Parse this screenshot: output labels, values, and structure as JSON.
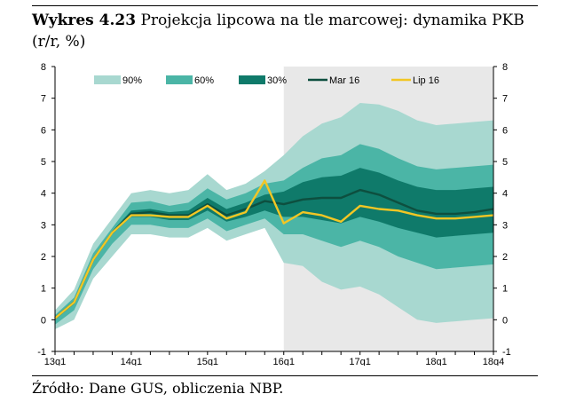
{
  "title": {
    "number": "Wykres 4.23",
    "text": "Projekcja lipcowa na tle marcowej: dynamika PKB (r/r, %)"
  },
  "source": "Źródło: Dane GUS, obliczenia NBP.",
  "colors": {
    "band90": "#a8d8d0",
    "band60": "#4bb5a6",
    "band30": "#0f7a6a",
    "mar16": "#0d4f3f",
    "lip16": "#f2c624",
    "projection_shade": "#e8e8e8"
  },
  "chart_data": {
    "type": "area",
    "title": "",
    "xlabel": "",
    "ylabel": "",
    "ylim": [
      -1,
      8
    ],
    "yticks": [
      -1,
      0,
      1,
      2,
      3,
      4,
      5,
      6,
      7,
      8
    ],
    "x_labels": [
      "13q1",
      "14q1",
      "15q1",
      "16q1",
      "17q1",
      "18q1",
      "18q4"
    ],
    "x_label_positions": [
      "2013Q1",
      "2014Q1",
      "2015Q1",
      "2016Q1",
      "2017Q1",
      "2018Q1",
      "2018Q4"
    ],
    "x": [
      "2013Q1",
      "2013Q2",
      "2013Q3",
      "2013Q4",
      "2014Q1",
      "2014Q2",
      "2014Q3",
      "2014Q4",
      "2015Q1",
      "2015Q2",
      "2015Q3",
      "2015Q4",
      "2016Q1",
      "2016Q2",
      "2016Q3",
      "2016Q4",
      "2017Q1",
      "2017Q2",
      "2017Q3",
      "2017Q4",
      "2018Q1",
      "2018Q2",
      "2018Q3",
      "2018Q4"
    ],
    "projection_shading_start": "2016Q1",
    "legend_position": "top",
    "legend": [
      "90%",
      "60%",
      "30%",
      "Mar 16",
      "Lip 16"
    ],
    "bands": [
      {
        "name": "90%",
        "lower": [
          -0.3,
          0.0,
          1.3,
          2.0,
          2.7,
          2.7,
          2.6,
          2.6,
          2.9,
          2.5,
          2.7,
          2.9,
          1.8,
          1.7,
          1.2,
          0.95,
          1.05,
          0.8,
          0.4,
          0.0,
          -0.1,
          -0.05,
          0.0,
          0.05
        ],
        "upper": [
          0.3,
          0.95,
          2.4,
          3.2,
          4.0,
          4.1,
          4.0,
          4.1,
          4.6,
          4.1,
          4.3,
          4.7,
          5.2,
          5.8,
          6.2,
          6.4,
          6.85,
          6.8,
          6.6,
          6.3,
          6.15,
          6.2,
          6.25,
          6.3
        ]
      },
      {
        "name": "60%",
        "lower": [
          -0.15,
          0.3,
          1.6,
          2.4,
          3.0,
          3.0,
          2.9,
          2.9,
          3.2,
          2.8,
          3.0,
          3.2,
          2.7,
          2.7,
          2.5,
          2.3,
          2.5,
          2.3,
          2.0,
          1.8,
          1.6,
          1.65,
          1.7,
          1.75
        ],
        "upper": [
          0.15,
          0.7,
          2.1,
          2.9,
          3.7,
          3.75,
          3.6,
          3.7,
          4.15,
          3.8,
          4.0,
          4.3,
          4.4,
          4.8,
          5.1,
          5.2,
          5.55,
          5.4,
          5.1,
          4.85,
          4.75,
          4.8,
          4.85,
          4.9
        ]
      },
      {
        "name": "30%",
        "lower": [
          0.0,
          0.5,
          1.85,
          2.7,
          3.25,
          3.25,
          3.15,
          3.15,
          3.45,
          3.1,
          3.25,
          3.45,
          3.25,
          3.25,
          3.15,
          3.05,
          3.25,
          3.1,
          2.9,
          2.75,
          2.6,
          2.65,
          2.7,
          2.75
        ],
        "upper": [
          0.1,
          0.6,
          1.95,
          2.8,
          3.45,
          3.5,
          3.4,
          3.45,
          3.85,
          3.5,
          3.7,
          3.95,
          4.05,
          4.35,
          4.5,
          4.55,
          4.8,
          4.65,
          4.4,
          4.2,
          4.1,
          4.1,
          4.15,
          4.2
        ]
      }
    ],
    "series": [
      {
        "name": "Mar 16",
        "values": [
          0.05,
          0.55,
          1.9,
          2.75,
          3.35,
          3.4,
          3.3,
          3.3,
          3.65,
          3.3,
          3.5,
          3.75,
          3.65,
          3.8,
          3.85,
          3.85,
          4.1,
          3.95,
          3.7,
          3.45,
          3.35,
          3.35,
          3.4,
          3.5
        ]
      },
      {
        "name": "Lip 16",
        "values": [
          0.05,
          0.55,
          1.9,
          2.75,
          3.3,
          3.3,
          3.25,
          3.25,
          3.6,
          3.2,
          3.4,
          4.4,
          3.05,
          3.4,
          3.3,
          3.1,
          3.6,
          3.5,
          3.45,
          3.3,
          3.2,
          3.2,
          3.25,
          3.3
        ]
      }
    ]
  }
}
